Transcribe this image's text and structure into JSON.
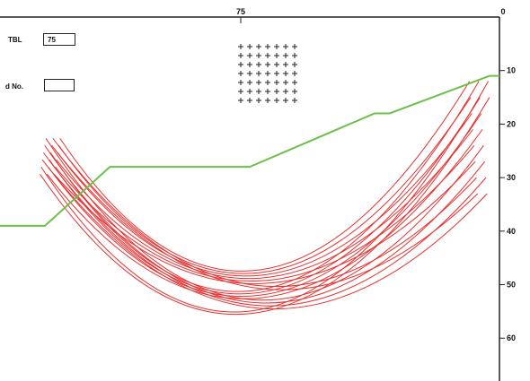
{
  "axes": {
    "top_tick_mid": "75",
    "top_tick_right": "0",
    "right_ticks": [
      "10",
      "20",
      "30",
      "40",
      "50",
      "60"
    ]
  },
  "fields": {
    "field1": {
      "label": "TBL",
      "value": "75"
    },
    "field2": {
      "label": "d No.",
      "value": ""
    }
  },
  "colors": {
    "slip_arcs": "#e83030",
    "ground_line": "#6cc04a",
    "frame": "#222222"
  },
  "chart_data": {
    "type": "line",
    "title": "",
    "xlabel": "",
    "ylabel": "",
    "xlim": [
      100,
      0
    ],
    "ylim": [
      68,
      0
    ],
    "y_axis_ticks": [
      10,
      20,
      30,
      40,
      50,
      60
    ],
    "x_axis_ticks": [
      75,
      0
    ],
    "series": [
      {
        "values": [
          {
            "x": 100,
            "y": 39
          },
          {
            "x": 91,
            "y": 39
          },
          {
            "x": 78,
            "y": 28
          },
          {
            "x": 50,
            "y": 28
          },
          {
            "x": 25,
            "y": 18
          },
          {
            "x": 22,
            "y": 18
          },
          {
            "x": 2,
            "y": 11
          },
          {
            "x": 0,
            "y": 11
          }
        ]
      }
    ],
    "slip_surfaces": {
      "count": 18,
      "left_x_range": [
        88,
        92
      ],
      "right_x_range": [
        2,
        6
      ],
      "top_y": 26,
      "bottom_y_range": [
        48,
        56
      ]
    },
    "grid_centers": {
      "rows": 7,
      "cols": 7
    }
  }
}
